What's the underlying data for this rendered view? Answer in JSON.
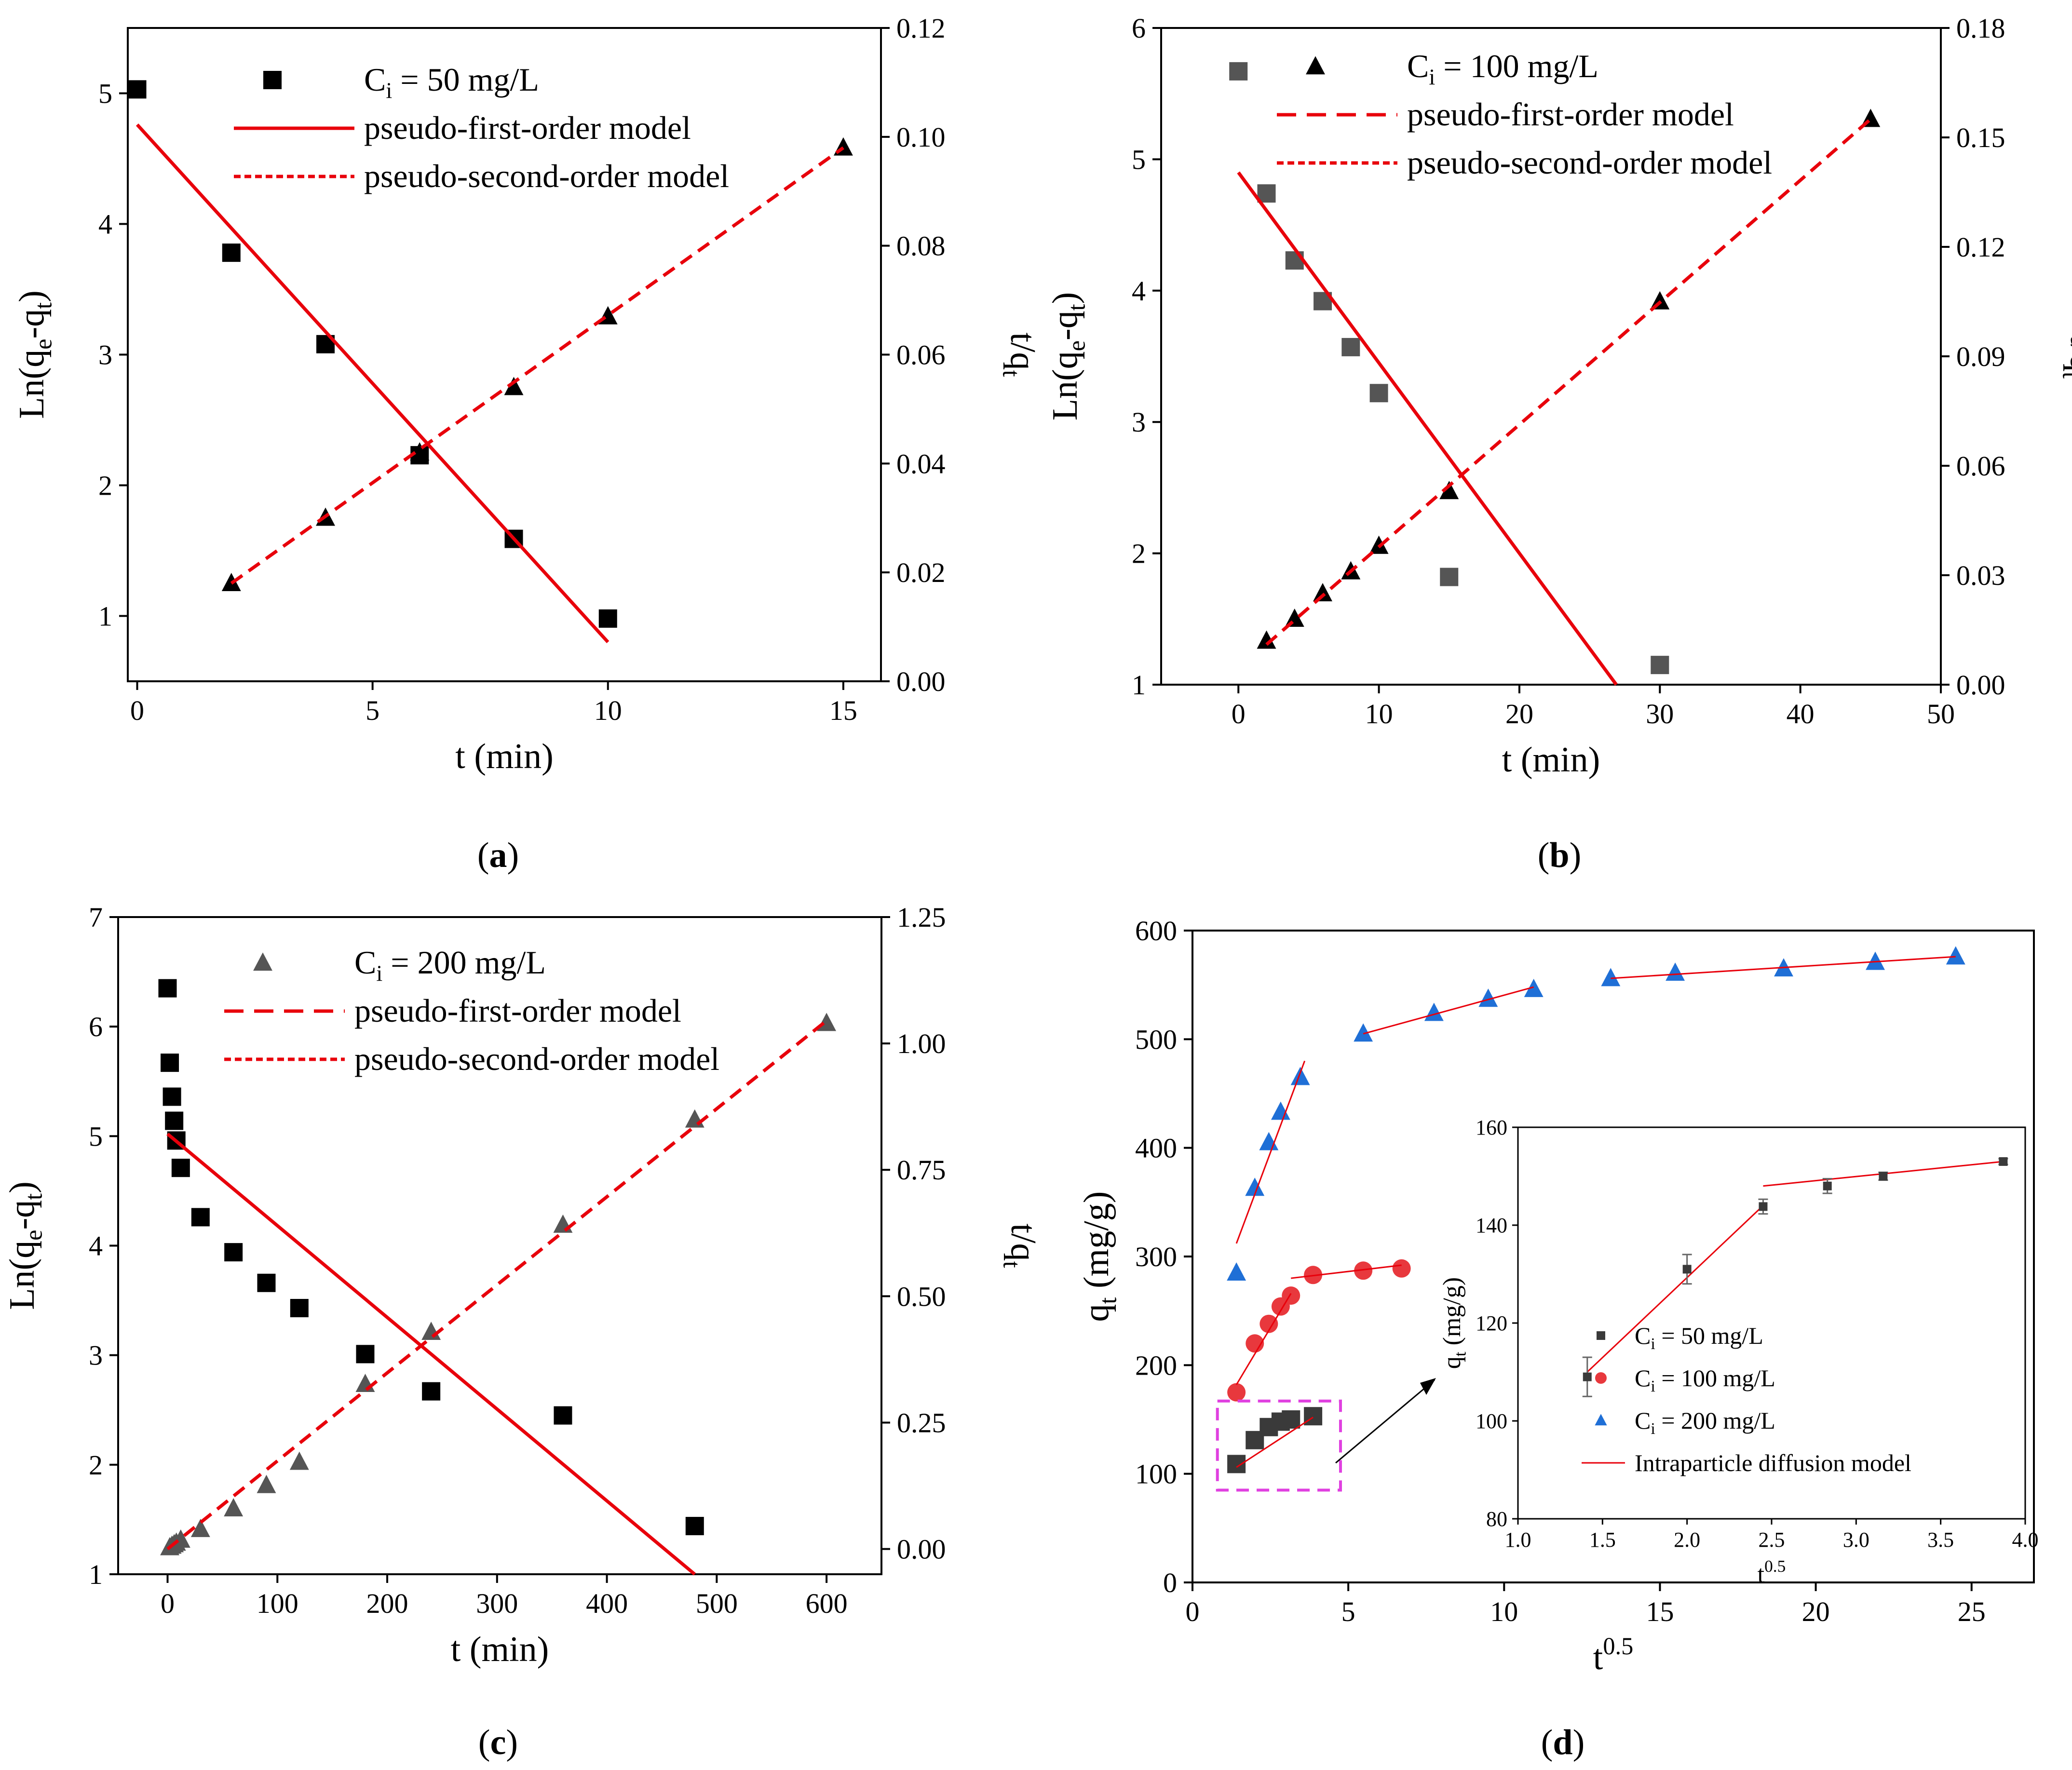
{
  "chart_data": [
    {
      "panel": "(a)",
      "type": "scatter",
      "xlabel": "t (min)",
      "ylabel": "Ln(q_e-q_t)",
      "y2label": "t/q_t",
      "xlim": [
        -0.2,
        15.8
      ],
      "ylim": [
        0.5,
        5.5
      ],
      "y2lim": [
        0,
        0.12
      ],
      "xticks": [
        "0",
        "5",
        "10",
        "15"
      ],
      "yticks": [
        "1",
        "2",
        "3",
        "4",
        "5"
      ],
      "y2ticks": [
        "0.00",
        "0.02",
        "0.04",
        "0.06",
        "0.08",
        "0.10",
        "0.12"
      ],
      "legend": {
        "position": "top-left",
        "entries": [
          "C_i = 50 mg/L",
          "pseudo-first-order model",
          "pseudo-second-order model"
        ]
      },
      "series": [
        {
          "name": "C_i = 50 mg/L",
          "axis": "left",
          "marker": "square",
          "color": "#000000",
          "x": [
            0,
            2,
            4,
            6,
            8,
            10
          ],
          "y": [
            5.03,
            3.78,
            3.08,
            2.23,
            1.59,
            0.98
          ]
        },
        {
          "axis": "right",
          "marker": "triangle",
          "color": "#000000",
          "x": [
            2,
            4,
            6,
            8,
            10,
            15
          ],
          "y": [
            0.018,
            0.03,
            0.042,
            0.054,
            0.067,
            0.098
          ]
        },
        {
          "name": "pseudo-first-order model",
          "axis": "left",
          "line": "solid",
          "color": "#e8000b",
          "x": [
            0,
            10
          ],
          "y": [
            4.76,
            0.8
          ]
        },
        {
          "name": "pseudo-second-order model",
          "axis": "right",
          "line": "dashed",
          "color": "#e8000b",
          "x": [
            2,
            15
          ],
          "y": [
            0.018,
            0.098
          ]
        }
      ]
    },
    {
      "panel": "(b)",
      "type": "scatter",
      "xlabel": "t (min)",
      "ylabel": "Ln(q_e-q_t)",
      "y2label": "t/q_t",
      "xlim": [
        -5.5,
        50
      ],
      "ylim": [
        1,
        6
      ],
      "y2lim": [
        0,
        0.18
      ],
      "xticks": [
        "0",
        "10",
        "20",
        "30",
        "40",
        "50"
      ],
      "yticks": [
        "1",
        "2",
        "3",
        "4",
        "5",
        "6"
      ],
      "y2ticks": [
        "0.00",
        "0.03",
        "0.06",
        "0.09",
        "0.12",
        "0.15",
        "0.18"
      ],
      "legend": {
        "position": "top-center",
        "entries": [
          "C_i = 100 mg/L",
          "pseudo-first-order model",
          "pseudo-second-order model"
        ]
      },
      "series": [
        {
          "axis": "left",
          "marker": "square",
          "color": "#555555",
          "x": [
            0,
            2,
            4,
            6,
            8,
            10,
            15,
            30
          ],
          "y": [
            5.67,
            4.74,
            4.23,
            3.92,
            3.57,
            3.22,
            1.82,
            1.15
          ]
        },
        {
          "name": "C_i = 100 mg/L",
          "axis": "right",
          "marker": "triangle",
          "color": "#000000",
          "x": [
            2,
            4,
            6,
            8,
            10,
            15,
            30,
            45
          ],
          "y": [
            0.012,
            0.018,
            0.025,
            0.031,
            0.038,
            0.053,
            0.105,
            0.155
          ]
        },
        {
          "name": "pseudo-first-order model",
          "axis": "left",
          "line": "solid",
          "color": "#e8000b",
          "x": [
            0,
            26.9
          ],
          "y": [
            4.9,
            1.0
          ]
        },
        {
          "name": "pseudo-second-order model",
          "axis": "right",
          "line": "dashed",
          "color": "#e8000b",
          "x": [
            2,
            45
          ],
          "y": [
            0.011,
            0.155
          ]
        }
      ]
    },
    {
      "panel": "(c)",
      "type": "scatter",
      "xlabel": "t (min)",
      "ylabel": "Ln(q_e-q_t)",
      "y2label": "t/q_t",
      "xlim": [
        -45,
        650
      ],
      "ylim": [
        1,
        7
      ],
      "y2lim": [
        -0.05,
        1.25
      ],
      "xticks": [
        "0",
        "100",
        "200",
        "300",
        "400",
        "500",
        "600"
      ],
      "yticks": [
        "1",
        "2",
        "3",
        "4",
        "5",
        "6",
        "7"
      ],
      "y2ticks": [
        "0.00",
        "0.25",
        "0.50",
        "0.75",
        "1.00",
        "1.25"
      ],
      "legend": {
        "position": "top-left",
        "entries": [
          "C_i = 200 mg/L",
          "pseudo-first-order model",
          "pseudo-second-order model"
        ]
      },
      "series": [
        {
          "axis": "left",
          "marker": "square",
          "color": "#000000",
          "x": [
            0,
            2,
            4,
            6,
            8,
            12,
            30,
            60,
            90,
            120,
            180,
            240,
            360,
            480
          ],
          "y": [
            6.35,
            5.67,
            5.36,
            5.14,
            4.96,
            4.71,
            4.26,
            3.94,
            3.66,
            3.43,
            3.01,
            2.67,
            2.45,
            1.44
          ]
        },
        {
          "name": "C_i = 200 mg/L",
          "axis": "right",
          "marker": "triangle",
          "color": "#555555",
          "x": [
            2,
            4,
            6,
            8,
            12,
            30,
            60,
            90,
            120,
            180,
            240,
            360,
            480,
            600
          ],
          "y": [
            0.003,
            0.006,
            0.009,
            0.012,
            0.018,
            0.039,
            0.08,
            0.126,
            0.172,
            0.326,
            0.429,
            0.641,
            0.849,
            1.04
          ]
        },
        {
          "name": "pseudo-first-order model",
          "axis": "left",
          "line": "solid",
          "color": "#e8000b",
          "x": [
            0,
            480
          ],
          "y": [
            5.02,
            1.0
          ]
        },
        {
          "name": "pseudo-second-order model",
          "axis": "right",
          "line": "dashed",
          "color": "#e8000b",
          "x": [
            0,
            600
          ],
          "y": [
            0.0,
            1.045
          ]
        }
      ]
    },
    {
      "panel": "(d)",
      "type": "scatter",
      "xlabel": "t^0.5",
      "ylabel": "q_t (mg/g)",
      "xlim": [
        0,
        27
      ],
      "ylim": [
        0,
        600
      ],
      "xticks": [
        "0",
        "5",
        "10",
        "15",
        "20",
        "25"
      ],
      "yticks": [
        "0",
        "100",
        "200",
        "300",
        "400",
        "500",
        "600"
      ],
      "series": [
        {
          "name": "C_i = 50 mg/L",
          "marker": "square",
          "color": "#3a3a3a",
          "x": [
            1.41,
            2.0,
            2.45,
            2.83,
            3.16,
            3.87
          ],
          "y": [
            109,
            131,
            143,
            148,
            150,
            153
          ]
        },
        {
          "name": "C_i = 100 mg/L",
          "marker": "circle",
          "color": "#e8383d",
          "x": [
            1.41,
            2.0,
            2.45,
            2.83,
            3.16,
            3.87,
            5.48,
            6.71
          ],
          "y": [
            175,
            220,
            238,
            254,
            264,
            283,
            287,
            289
          ]
        },
        {
          "name": "C_i = 200 mg/L",
          "marker": "triangle",
          "color": "#1f6fd6",
          "x": [
            1.41,
            2.0,
            2.45,
            2.83,
            3.46,
            5.48,
            7.75,
            9.49,
            10.95,
            13.42,
            15.49,
            18.97,
            21.91,
            24.49
          ],
          "y": [
            285,
            363,
            405,
            433,
            465,
            505,
            524,
            537,
            546,
            556,
            561,
            565,
            571,
            576
          ]
        },
        {
          "name": "Intraparticle diffusion model",
          "line": "solid",
          "color": "#e8000b",
          "segments": [
            {
              "x": [
                1.41,
                3.87
              ],
              "y": [
                106,
                152
              ]
            },
            {
              "x": [
                1.41,
                3.16
              ],
              "y": [
                182,
                266
              ]
            },
            {
              "x": [
                3.16,
                6.71
              ],
              "y": [
                280,
                292
              ]
            },
            {
              "x": [
                1.41,
                3.6
              ],
              "y": [
                312,
                480
              ]
            },
            {
              "x": [
                5.48,
                10.95
              ],
              "y": [
                505,
                548
              ]
            },
            {
              "x": [
                13.42,
                24.49
              ],
              "y": [
                556,
                576
              ]
            }
          ]
        }
      ],
      "inset": {
        "xlabel": "t^0.5",
        "ylabel": "q_t (mg/g)",
        "xlim": [
          1.0,
          4.0
        ],
        "ylim": [
          80,
          160
        ],
        "xticks": [
          "1.0",
          "1.5",
          "2.0",
          "2.5",
          "3.0",
          "3.5",
          "4.0"
        ],
        "yticks": [
          "80",
          "100",
          "120",
          "140",
          "160"
        ],
        "legend": {
          "position": "bottom-left",
          "entries": [
            "C_i = 50 mg/L",
            "C_i = 100 mg/L",
            "C_i = 200 mg/L",
            "Intraparticle diffusion model"
          ]
        },
        "points": {
          "x": [
            1.41,
            2.0,
            2.45,
            2.83,
            3.16,
            3.87
          ],
          "y": [
            109,
            131,
            143.8,
            148,
            150,
            153
          ],
          "err": [
            4,
            3,
            1.5,
            1.5,
            0.8,
            0.6
          ]
        },
        "fit": [
          {
            "x": [
              1.41,
              2.45
            ],
            "y": [
              110,
              144
            ]
          },
          {
            "x": [
              2.45,
              3.87
            ],
            "y": [
              148,
              153
            ]
          }
        ]
      }
    }
  ],
  "panel_labels": [
    "(a)",
    "(b)",
    "(c)",
    "(d)"
  ],
  "colors": {
    "fit_line": "#e8000b",
    "highlight_box": "#e040e0",
    "c50": "#3a3a3a",
    "c100": "#e8383d",
    "c200": "#1f6fd6"
  }
}
